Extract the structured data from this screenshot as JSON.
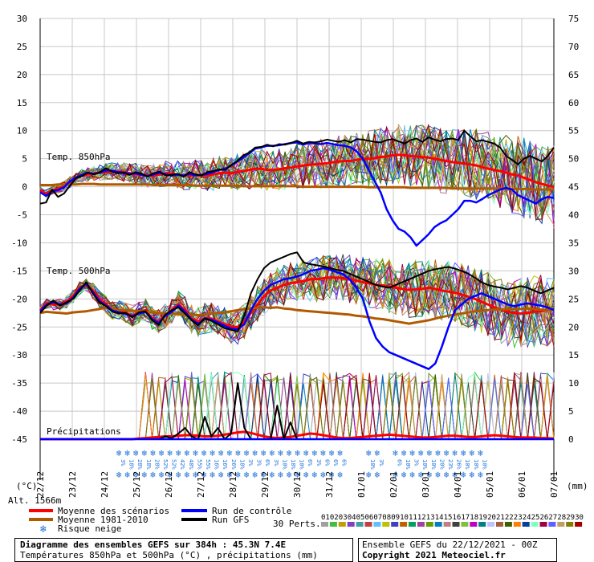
{
  "chart_data": {
    "type": "line",
    "title": "Diagramme des ensembles GEFS sur 384h : 45.3N 7.4E",
    "subtitle": "Températures 850hPa et 500hPa (°C) , précipitations (mm)",
    "run_info": "Ensemble GEFS du 22/12/2021 - 00Z",
    "copyright": "Copyright 2021 Meteociel.fr",
    "y_left_unit": "(°C)",
    "y_right_unit": "(mm)",
    "altitude": "Alt. 1566m",
    "ylim_left": [
      -45,
      30
    ],
    "ylim_right": [
      0,
      75
    ],
    "y_left_ticks": [
      "30",
      "25",
      "20",
      "15",
      "10",
      "5",
      "0",
      "-5",
      "-10",
      "-15",
      "-20",
      "-25",
      "-30",
      "-35",
      "-40",
      "-45"
    ],
    "y_right_ticks": [
      "75",
      "70",
      "65",
      "60",
      "55",
      "50",
      "45",
      "40",
      "35",
      "30",
      "25",
      "20",
      "15",
      "10",
      "5",
      "0"
    ],
    "x_ticks": [
      "22/12",
      "23/12",
      "24/12",
      "25/12",
      "26/12",
      "27/12",
      "28/12",
      "29/12",
      "30/12",
      "31/12",
      "01/01",
      "02/01",
      "03/01",
      "04/01",
      "05/01",
      "06/01",
      "07/01"
    ],
    "section_labels": {
      "t850": "Temp. 850hPa",
      "t500": "Temp. 500hPa",
      "precip": "Précipitations"
    },
    "legend": {
      "mean": "Moyenne des scénarios",
      "clim": "Moyenne 1981-2010",
      "control": "Run de contrôle",
      "gfs": "Run GFS",
      "snow": "Risque neige",
      "perts_title": "30 Perts."
    },
    "member_labels": [
      "01",
      "02",
      "03",
      "04",
      "05",
      "06",
      "07",
      "08",
      "09",
      "10",
      "11",
      "12",
      "13",
      "14",
      "15",
      "16",
      "17",
      "18",
      "19",
      "20",
      "21",
      "22",
      "23",
      "24",
      "25",
      "26",
      "27",
      "28",
      "29",
      "30"
    ],
    "member_colors": [
      "#a0a0a0",
      "#40c040",
      "#c0a000",
      "#8040c0",
      "#40a0a0",
      "#c04040",
      "#60c0ff",
      "#c0c000",
      "#4040c0",
      "#c06000",
      "#00a060",
      "#a040a0",
      "#60a000",
      "#0080c0",
      "#c08080",
      "#404040",
      "#80c040",
      "#c000c0",
      "#008080",
      "#c0c0ff",
      "#a06040",
      "#406000",
      "#ff8000",
      "#0040a0",
      "#80ffc0",
      "#a00040",
      "#6060ff",
      "#c0a060",
      "#808000",
      "#a00000"
    ],
    "snow_risk_labels": [
      "3%",
      "18%",
      "28%",
      "18%",
      "28%",
      "52%",
      "52%",
      "42%",
      "48%",
      "55%",
      "55%",
      "16%",
      "16%",
      "26%",
      "18%",
      "3%",
      "3%",
      "6%",
      "3%",
      "10%",
      "18%",
      "10%",
      "6%",
      "3%",
      "6%",
      "6%",
      "6%",
      "10%",
      "3%",
      "6%",
      "10%",
      "3%",
      "10%",
      "10%",
      "20%",
      "23%",
      "26%",
      "10%",
      "10%",
      "10%"
    ],
    "series": [
      {
        "name": "Moyenne des scénarios (T850)",
        "color": "#ff0000",
        "values": [
          -0.6,
          -1.2,
          -0.7,
          -0.3,
          0.0,
          0.8,
          1.5,
          2.0,
          2.2,
          2.4,
          2.5,
          2.7,
          2.8,
          2.7,
          2.6,
          2.4,
          2.3,
          2.1,
          2.0,
          2.0,
          2.2,
          2.4,
          2.3,
          2.2,
          2.0,
          2.0,
          2.1,
          2.0,
          2.0,
          2.2,
          2.4,
          2.5,
          2.4,
          2.6,
          2.8,
          3.0,
          3.2,
          3.2,
          3.0,
          3.0,
          3.1,
          3.3,
          3.4,
          3.6,
          3.8,
          3.9,
          4.0,
          4.1,
          4.2,
          4.4,
          4.5,
          4.6,
          4.6,
          4.8,
          5.0,
          5.0,
          5.1,
          5.3,
          5.4,
          5.6,
          5.7,
          5.6,
          5.5,
          5.4,
          5.3,
          5.2,
          5.0,
          4.8,
          4.6,
          4.4,
          4.3,
          4.1,
          4.0,
          3.8,
          3.5,
          3.2,
          3.0,
          2.8,
          2.5,
          2.2,
          2.0,
          1.6,
          1.2,
          0.8,
          0.5,
          0.2,
          0.0
        ]
      },
      {
        "name": "Moyenne 1981-2010 (T850)",
        "color": "#b05a00",
        "values": [
          0.3,
          0.3,
          0.3,
          0.4,
          0.4,
          0.4,
          0.4,
          0.5,
          0.5,
          0.5,
          0.4,
          0.4,
          0.4,
          0.4,
          0.4,
          0.4,
          0.4,
          0.4,
          0.4,
          0.3,
          0.3,
          0.3,
          0.3,
          0.3,
          0.3,
          0.3,
          0.2,
          0.2,
          0.2,
          0.2,
          0.2,
          0.2,
          0.2,
          0.2,
          0.1,
          0.1,
          0.1,
          0.1,
          0.1,
          0.1,
          0.1,
          0.1,
          0.1,
          0.1,
          0.0,
          0.0,
          0.0,
          0.0,
          0.0,
          0.0,
          0.0,
          0.0,
          0.0,
          0.0,
          0.0,
          -0.1,
          -0.1,
          -0.1,
          -0.1,
          -0.1,
          -0.1,
          -0.1,
          -0.2,
          -0.2,
          -0.2,
          -0.2,
          -0.2,
          -0.2,
          -0.2,
          -0.3,
          -0.3,
          -0.3,
          -0.3,
          -0.3,
          -0.3,
          -0.3,
          -0.3,
          -0.3,
          -0.4,
          -0.4,
          -0.4,
          -0.4,
          -0.4,
          -0.5,
          -0.5,
          -0.5,
          -0.5
        ]
      },
      {
        "name": "Run de contrôle (T850)",
        "color": "#0000ff",
        "values": [
          -1.0,
          -1.6,
          -0.8,
          -0.6,
          -0.1,
          1.0,
          1.6,
          2.1,
          2.5,
          2.3,
          2.5,
          2.9,
          2.9,
          2.6,
          2.5,
          2.3,
          2.4,
          2.1,
          1.9,
          2.2,
          2.5,
          2.2,
          2.0,
          2.1,
          2.0,
          2.3,
          2.0,
          2.1,
          2.3,
          2.6,
          3.0,
          3.2,
          3.8,
          4.5,
          5.2,
          6.0,
          6.8,
          7.0,
          7.3,
          7.3,
          7.4,
          7.6,
          7.8,
          7.9,
          7.5,
          7.8,
          7.7,
          7.6,
          7.8,
          7.6,
          7.4,
          7.3,
          7.0,
          6.3,
          5.0,
          3.0,
          1.0,
          -1.0,
          -4.0,
          -6.0,
          -7.5,
          -8.0,
          -9.0,
          -10.5,
          -9.5,
          -8.5,
          -7.2,
          -6.5,
          -6.0,
          -5.0,
          -4.0,
          -2.5,
          -2.5,
          -2.8,
          -2.2,
          -1.5,
          -1.0,
          -0.5,
          -0.2,
          -0.5,
          -1.5,
          -2.0,
          -2.5,
          -3.0,
          -2.2,
          -1.8,
          -2.0
        ]
      },
      {
        "name": "Run GFS (T850)",
        "color": "#000000",
        "values": [
          -3.0,
          -2.8,
          -0.5,
          -1.8,
          -1.2,
          0.2,
          1.5,
          1.9,
          2.5,
          2.2,
          2.6,
          3.3,
          2.7,
          2.4,
          2.5,
          2.1,
          2.6,
          2.3,
          1.8,
          2.4,
          2.7,
          2.0,
          2.1,
          2.3,
          1.8,
          2.6,
          2.2,
          2.0,
          2.6,
          2.8,
          3.1,
          3.0,
          3.9,
          4.6,
          5.6,
          6.1,
          7.0,
          7.1,
          7.5,
          7.2,
          7.6,
          7.5,
          7.8,
          8.2,
          7.7,
          8.0,
          7.9,
          8.1,
          8.4,
          8.2,
          8.0,
          8.3,
          7.9,
          8.5,
          8.4,
          8.2,
          8.0,
          7.9,
          8.3,
          8.5,
          8.1,
          7.7,
          8.3,
          8.6,
          8.0,
          8.8,
          8.4,
          8.1,
          8.5,
          8.6,
          8.3,
          10.0,
          9.0,
          8.1,
          8.3,
          8.0,
          7.7,
          7.0,
          5.5,
          4.8,
          4.0,
          5.0,
          5.5,
          5.0,
          4.5,
          5.5,
          7.0
        ]
      },
      {
        "name": "Moyenne des scénarios (T500)",
        "color": "#ff0000",
        "values": [
          -22.0,
          -20.8,
          -21.0,
          -21.0,
          -20.5,
          -19.5,
          -18.0,
          -17.5,
          -18.5,
          -20.0,
          -21.0,
          -22.0,
          -22.0,
          -22.5,
          -23.0,
          -22.5,
          -22.0,
          -23.5,
          -24.0,
          -23.0,
          -22.0,
          -21.0,
          -22.0,
          -23.5,
          -24.0,
          -23.5,
          -23.5,
          -24.0,
          -24.5,
          -25.0,
          -25.0,
          -24.0,
          -22.5,
          -21.0,
          -19.5,
          -18.5,
          -18.0,
          -17.5,
          -17.2,
          -17.0,
          -16.8,
          -16.5,
          -16.5,
          -16.3,
          -16.2,
          -16.2,
          -16.3,
          -16.5,
          -16.7,
          -17.0,
          -17.2,
          -17.5,
          -17.6,
          -17.8,
          -18.0,
          -18.2,
          -18.4,
          -18.3,
          -18.2,
          -18.0,
          -18.2,
          -18.5,
          -18.7,
          -18.9,
          -19.2,
          -19.6,
          -20.0,
          -20.5,
          -21.0,
          -21.5,
          -22.0,
          -22.3,
          -22.5,
          -22.6,
          -22.5,
          -22.3,
          -22.2,
          -22.0,
          -21.8
        ]
      },
      {
        "name": "Moyenne 1981-2010 (T500)",
        "color": "#b05a00",
        "values": [
          -22.5,
          -22.3,
          -22.4,
          -22.5,
          -22.6,
          -22.4,
          -22.3,
          -22.2,
          -22.0,
          -21.8,
          -21.5,
          -21.7,
          -22.0,
          -22.0,
          -22.1,
          -22.2,
          -22.3,
          -22.4,
          -22.5,
          -22.6,
          -22.6,
          -22.7,
          -22.8,
          -22.8,
          -22.9,
          -22.8,
          -22.6,
          -22.5,
          -22.4,
          -22.2,
          -22.0,
          -21.8,
          -21.7,
          -21.6,
          -21.5,
          -21.6,
          -21.5,
          -21.7,
          -21.8,
          -22.0,
          -22.1,
          -22.2,
          -22.3,
          -22.4,
          -22.5,
          -22.6,
          -22.7,
          -22.8,
          -23.0,
          -23.1,
          -23.3,
          -23.5,
          -23.6,
          -23.8,
          -24.0,
          -24.2,
          -24.4,
          -24.2,
          -24.0,
          -23.8,
          -23.5,
          -23.2,
          -23.0,
          -22.8,
          -22.6,
          -22.4,
          -22.2,
          -22.1,
          -22.0,
          -21.9,
          -21.9,
          -21.8,
          -21.8,
          -21.8,
          -21.7,
          -21.8,
          -21.9,
          -22.0,
          -22.0
        ]
      },
      {
        "name": "Run de contrôle (T500)",
        "color": "#0000ff",
        "values": [
          -22.2,
          -21.0,
          -20.6,
          -21.0,
          -20.8,
          -19.8,
          -18.2,
          -17.3,
          -18.8,
          -20.4,
          -21.2,
          -22.1,
          -22.4,
          -22.7,
          -23.1,
          -22.6,
          -22.3,
          -23.6,
          -24.3,
          -23.0,
          -22.3,
          -21.2,
          -22.3,
          -23.7,
          -24.4,
          -23.6,
          -23.7,
          -24.2,
          -24.8,
          -25.3,
          -25.4,
          -24.5,
          -22.0,
          -20.0,
          -18.5,
          -17.5,
          -17.0,
          -16.5,
          -16.3,
          -16.0,
          -15.6,
          -15.0,
          -14.8,
          -14.5,
          -14.8,
          -15.2,
          -15.6,
          -16.5,
          -18.0,
          -20.0,
          -24.0,
          -27.0,
          -28.5,
          -29.5,
          -30.0,
          -30.5,
          -31.0,
          -31.5,
          -32.0,
          -32.5,
          -31.5,
          -28.5,
          -25.0,
          -22.0,
          -21.0,
          -20.0,
          -19.5,
          -19.0,
          -19.5,
          -20.0,
          -20.5,
          -21.0,
          -21.3,
          -21.0,
          -20.8,
          -21.0,
          -21.2,
          -21.5,
          -22.0
        ]
      },
      {
        "name": "Run GFS (T500)",
        "color": "#000000",
        "values": [
          -22.5,
          -21.2,
          -20.3,
          -21.2,
          -20.6,
          -20.0,
          -18.5,
          -17.0,
          -19.0,
          -20.6,
          -21.3,
          -22.3,
          -22.6,
          -22.5,
          -23.3,
          -22.4,
          -22.2,
          -23.8,
          -24.6,
          -22.8,
          -22.0,
          -21.5,
          -22.6,
          -23.8,
          -24.7,
          -23.4,
          -23.9,
          -24.5,
          -25.2,
          -25.5,
          -25.8,
          -23.0,
          -19.0,
          -16.5,
          -14.5,
          -13.5,
          -13.0,
          -12.5,
          -12.0,
          -11.7,
          -13.5,
          -13.8,
          -14.0,
          -14.2,
          -14.5,
          -14.8,
          -15.0,
          -15.5,
          -16.0,
          -16.5,
          -17.0,
          -17.5,
          -17.8,
          -18.0,
          -17.5,
          -17.0,
          -16.5,
          -16.0,
          -15.5,
          -15.0,
          -14.7,
          -14.5,
          -14.3,
          -14.6,
          -15.0,
          -15.5,
          -16.2,
          -17.0,
          -17.5,
          -17.8,
          -18.0,
          -18.3,
          -18.0,
          -17.7,
          -18.0,
          -18.5,
          -19.0,
          -18.5,
          -18.0
        ]
      },
      {
        "name": "Moyenne des scénarios (précip mm)",
        "color": "#ff0000",
        "values": [
          0,
          0,
          0,
          0,
          0,
          0,
          0,
          0,
          0,
          0,
          0,
          0,
          0,
          0,
          0,
          0.1,
          0.2,
          0.3,
          0.4,
          0.5,
          0.5,
          0.6,
          0.7,
          0.7,
          0.6,
          0.5,
          0.5,
          0.6,
          0.8,
          1.0,
          1.2,
          1.3,
          1.1,
          0.8,
          0.5,
          0.3,
          0.2,
          0.3,
          0.4,
          0.6,
          0.8,
          1.0,
          0.9,
          0.7,
          0.5,
          0.3,
          0.2,
          0.2,
          0.3,
          0.4,
          0.5,
          0.6,
          0.7,
          0.8,
          0.7,
          0.6,
          0.5,
          0.4,
          0.3,
          0.3,
          0.4,
          0.5,
          0.6,
          0.6,
          0.5,
          0.4,
          0.4,
          0.5,
          0.6,
          0.7,
          0.6,
          0.5,
          0.4,
          0.3,
          0.3,
          0.3,
          0.2,
          0.2,
          0.1
        ]
      },
      {
        "name": "Run GFS (précip mm)",
        "color": "#000000",
        "values": [
          0,
          0,
          0,
          0,
          0,
          0,
          0,
          0,
          0,
          0,
          0,
          0,
          0,
          0,
          0,
          0,
          0,
          0,
          0,
          0.5,
          0.2,
          1.0,
          2.0,
          0.5,
          0,
          4.0,
          0.5,
          2.0,
          0,
          1.0,
          10.0,
          2.0,
          0,
          0,
          0,
          0,
          6.0,
          0,
          3.0,
          0,
          0,
          0,
          0,
          0,
          0,
          0,
          0,
          0,
          0,
          0,
          0,
          0,
          0,
          0,
          0,
          0,
          0,
          0,
          0,
          0,
          0,
          0,
          0,
          0,
          0,
          0,
          0,
          0,
          0,
          0,
          0,
          0,
          0,
          0,
          0,
          0,
          0,
          0,
          0
        ]
      },
      {
        "name": "Run de contrôle (précip mm)",
        "color": "#0000ff",
        "values": [
          0,
          0,
          0,
          0,
          0,
          0,
          0,
          0,
          0,
          0,
          0,
          0,
          0,
          0,
          0,
          0,
          0,
          0,
          0,
          0,
          0,
          0,
          0,
          0,
          0,
          0,
          0,
          0,
          0,
          0,
          0,
          0,
          0,
          0,
          0,
          0,
          0,
          0,
          0,
          0,
          0,
          0,
          0,
          0,
          0,
          0,
          0,
          0,
          0,
          0,
          0,
          0,
          0,
          0,
          0,
          0,
          0,
          0,
          0,
          0,
          0,
          0,
          0,
          0,
          0,
          0,
          0,
          0,
          0,
          0,
          0,
          0,
          0,
          0,
          0,
          0,
          0,
          0,
          0
        ]
      }
    ]
  }
}
